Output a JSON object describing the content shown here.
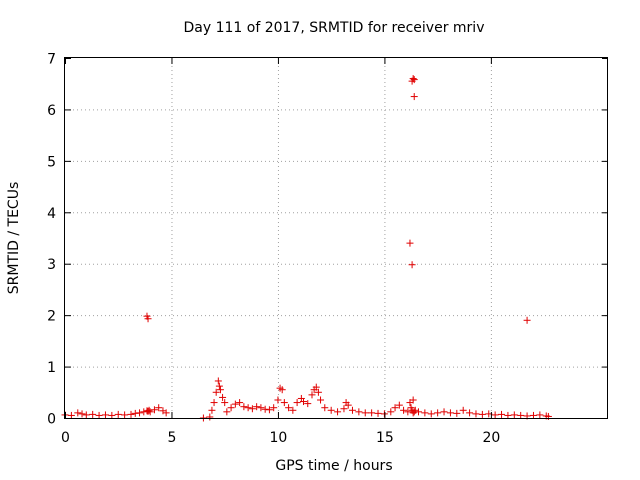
{
  "chart_data": {
    "type": "scatter",
    "title": "Day 111 of 2017, SRMTID for receiver mriv",
    "xlabel": "GPS time / hours",
    "ylabel": "SRMTID / TECUs",
    "xlim": [
      0,
      25.5
    ],
    "ylim": [
      0,
      7
    ],
    "xticks": [
      0,
      5,
      10,
      15,
      20
    ],
    "xtick_labels": [
      "0",
      "5",
      "10",
      "15",
      "20"
    ],
    "yticks": [
      0,
      1,
      2,
      3,
      4,
      5,
      6,
      7
    ],
    "ytick_labels": [
      "0",
      "1",
      "2",
      "3",
      "4",
      "5",
      "6",
      "7"
    ],
    "grid": true,
    "marker": "plus",
    "color": "#e00000",
    "series": [
      {
        "name": "SRMTID",
        "x": [
          0.0,
          0.3,
          0.6,
          0.8,
          1.0,
          1.3,
          1.6,
          1.9,
          2.2,
          2.5,
          2.8,
          3.1,
          3.3,
          3.5,
          3.7,
          3.85,
          3.9,
          3.95,
          4.0,
          4.2,
          4.4,
          4.6,
          4.75,
          6.5,
          6.8,
          6.9,
          7.0,
          7.1,
          7.2,
          7.25,
          7.3,
          7.4,
          7.5,
          7.6,
          7.8,
          8.0,
          8.2,
          8.4,
          8.6,
          8.8,
          9.0,
          9.2,
          9.4,
          9.6,
          9.8,
          10.0,
          10.1,
          10.2,
          10.3,
          10.5,
          10.7,
          10.9,
          11.1,
          11.2,
          11.4,
          11.6,
          11.7,
          11.8,
          11.9,
          12.0,
          12.2,
          12.5,
          12.8,
          13.1,
          13.2,
          13.3,
          13.5,
          13.8,
          14.1,
          14.4,
          14.7,
          15.0,
          15.3,
          15.5,
          15.7,
          15.9,
          16.1,
          16.2,
          16.25,
          16.3,
          16.35,
          16.4,
          16.45,
          16.6,
          16.9,
          17.2,
          17.5,
          17.8,
          18.1,
          18.4,
          18.7,
          19.0,
          19.3,
          19.6,
          19.9,
          20.2,
          20.5,
          20.8,
          21.1,
          21.4,
          21.7,
          22.0,
          22.3,
          22.6,
          22.7,
          3.85,
          3.9,
          16.2,
          16.3,
          16.4,
          16.35,
          16.35,
          16.4,
          21.7,
          16.3
        ],
        "y": [
          0.06,
          0.05,
          0.1,
          0.08,
          0.06,
          0.07,
          0.05,
          0.06,
          0.05,
          0.07,
          0.06,
          0.07,
          0.09,
          0.1,
          0.12,
          0.14,
          0.13,
          0.15,
          0.12,
          0.16,
          0.2,
          0.14,
          0.1,
          0.0,
          0.02,
          0.15,
          0.3,
          0.5,
          0.72,
          0.62,
          0.55,
          0.4,
          0.3,
          0.12,
          0.2,
          0.27,
          0.3,
          0.22,
          0.2,
          0.18,
          0.22,
          0.2,
          0.17,
          0.16,
          0.2,
          0.35,
          0.58,
          0.55,
          0.3,
          0.2,
          0.15,
          0.3,
          0.38,
          0.32,
          0.28,
          0.45,
          0.55,
          0.6,
          0.5,
          0.35,
          0.2,
          0.15,
          0.12,
          0.18,
          0.3,
          0.25,
          0.15,
          0.12,
          0.1,
          0.1,
          0.09,
          0.08,
          0.12,
          0.2,
          0.25,
          0.15,
          0.12,
          0.3,
          0.2,
          0.15,
          0.1,
          0.12,
          0.15,
          0.12,
          0.1,
          0.08,
          0.1,
          0.12,
          0.1,
          0.09,
          0.15,
          0.1,
          0.08,
          0.07,
          0.08,
          0.06,
          0.07,
          0.05,
          0.06,
          0.05,
          0.04,
          0.05,
          0.06,
          0.04,
          0.03,
          1.98,
          1.93,
          3.4,
          6.55,
          6.58,
          6.6,
          0.35,
          6.25,
          1.9,
          2.98
        ]
      }
    ]
  }
}
